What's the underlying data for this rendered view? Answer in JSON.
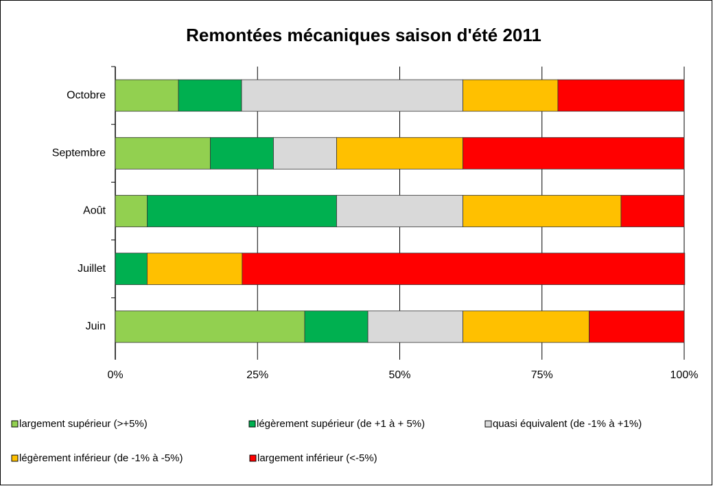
{
  "chart_data": {
    "type": "stacked-barh",
    "title": "Remontées mécaniques saison d'été 2011",
    "categories": [
      "Octobre",
      "Septembre",
      "Août",
      "Juillet",
      "Juin"
    ],
    "series": [
      {
        "name": "largement supérieur (>+5%)",
        "color": "#92d050",
        "values": [
          11.1,
          16.7,
          5.6,
          0,
          33.3
        ]
      },
      {
        "name": "légèrement supérieur (de +1 à + 5%)",
        "color": "#00b050",
        "values": [
          11.1,
          11.1,
          33.3,
          5.6,
          11.1
        ]
      },
      {
        "name": "quasi équivalent (de -1% à +1%)",
        "color": "#d9d9d9",
        "values": [
          38.9,
          11.1,
          22.2,
          0,
          16.7
        ]
      },
      {
        "name": "légèrement inférieur (de -1% à -5%)",
        "color": "#ffc000",
        "values": [
          16.7,
          22.2,
          27.8,
          16.7,
          22.2
        ]
      },
      {
        "name": "largement inférieur (<-5%)",
        "color": "#ff0000",
        "values": [
          22.2,
          38.9,
          11.1,
          77.8,
          16.7
        ]
      }
    ],
    "xlim": [
      0,
      100
    ],
    "xticks": [
      {
        "value": 0,
        "label": "0%"
      },
      {
        "value": 25,
        "label": "25%"
      },
      {
        "value": 50,
        "label": "50%"
      },
      {
        "value": 75,
        "label": "75%"
      },
      {
        "value": 100,
        "label": "100%"
      }
    ],
    "grid": true
  }
}
